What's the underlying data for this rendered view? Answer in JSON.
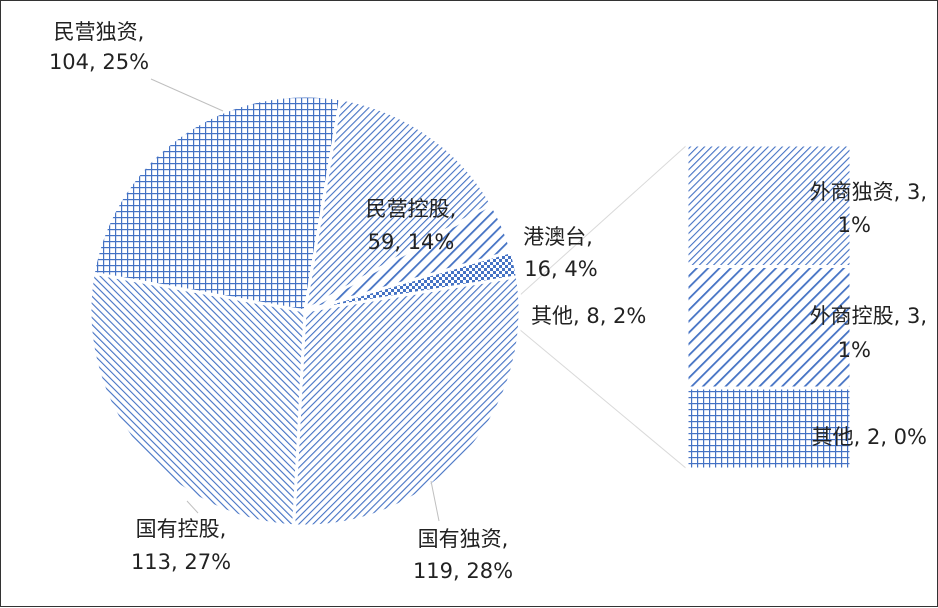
{
  "chart_data": {
    "type": "pie",
    "subtype": "bar-of-pie",
    "pattern_color": "#4472c4",
    "slices": [
      {
        "category": "国有独资",
        "value": 119,
        "percent": "28%",
        "label_line1": "国有独资,",
        "label_line2": "119, 28%",
        "pattern": "diag-right-fine"
      },
      {
        "category": "国有控股",
        "value": 113,
        "percent": "27%",
        "label_line1": "国有控股,",
        "label_line2": "113, 27%",
        "pattern": "diag-left-fine"
      },
      {
        "category": "民营独资",
        "value": 104,
        "percent": "25%",
        "label_line1": "民营独资,",
        "label_line2": "104, 25%",
        "pattern": "grid"
      },
      {
        "category": "民营控股",
        "value": 59,
        "percent": "14%",
        "label_line1": "民营控股,",
        "label_line2": "59, 14%",
        "pattern": "diag-right-fine"
      },
      {
        "category": "港澳台",
        "value": 16,
        "percent": "4%",
        "label_line1": "港澳台,",
        "label_line2": "16, 4%",
        "pattern": "diag-right-wide"
      },
      {
        "category": "其他",
        "value": 8,
        "percent": "2%",
        "label_line1": "其他, 8, 2%",
        "label_line2": "",
        "pattern": "checker"
      }
    ],
    "bar_breakdown": [
      {
        "category": "外商独资",
        "value": 3,
        "percent": "1%",
        "label_line1": "外商独资, 3,",
        "label_line2": "1%",
        "pattern": "diag-right-fine"
      },
      {
        "category": "外商控股",
        "value": 3,
        "percent": "1%",
        "label_line1": "外商控股, 3,",
        "label_line2": "1%",
        "pattern": "diag-right-wide"
      },
      {
        "category": "其他",
        "value": 2,
        "percent": "0%",
        "label_line1": "其他, 2, 0%",
        "label_line2": "",
        "pattern": "grid"
      }
    ],
    "legend": "none"
  }
}
